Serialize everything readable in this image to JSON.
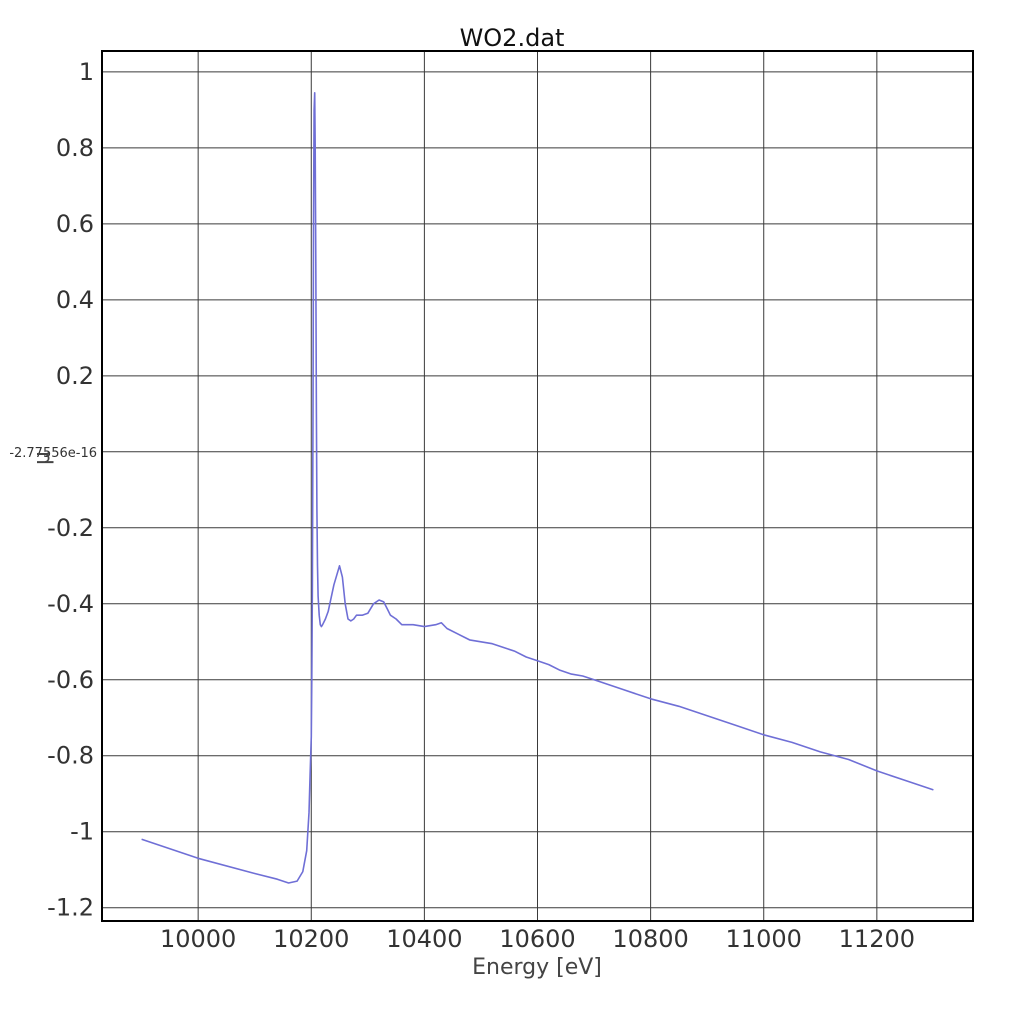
{
  "chart_data": {
    "type": "line",
    "title": "WO2.dat",
    "xlabel": "Energy [eV]",
    "ylabel": "μ",
    "xlim": [
      9830,
      11370
    ],
    "ylim": [
      -1.235,
      1.055
    ],
    "grid": true,
    "x_ticks": [
      10000,
      10200,
      10400,
      10600,
      10800,
      11000,
      11200
    ],
    "x_tick_labels": [
      "10000",
      "10200",
      "10400",
      "10600",
      "10800",
      "11000",
      "11200"
    ],
    "y_ticks": [
      1,
      0.8,
      0.6,
      0.4,
      0.2,
      0,
      -0.2,
      -0.4,
      -0.6,
      -0.8,
      -1,
      -1.2
    ],
    "y_tick_labels": [
      "1",
      "0.8",
      "0.6",
      "0.4",
      "0.2",
      "-2.77556e-16",
      "-0.2",
      "-0.4",
      "-0.6",
      "-0.8",
      "-1",
      "-1.2"
    ],
    "series": [
      {
        "color": "#6f6fd6",
        "x": [
          9900,
          10000,
          10100,
          10140,
          10160,
          10175,
          10185,
          10192,
          10196,
          10198,
          10200,
          10201,
          10202,
          10203,
          10204,
          10205,
          10206,
          10207,
          10208,
          10209,
          10210,
          10211,
          10212,
          10214,
          10216,
          10218,
          10220,
          10225,
          10230,
          10240,
          10250,
          10255,
          10260,
          10265,
          10270,
          10275,
          10280,
          10290,
          10300,
          10310,
          10320,
          10328,
          10335,
          10340,
          10350,
          10360,
          10380,
          10400,
          10420,
          10430,
          10440,
          10460,
          10480,
          10500,
          10520,
          10540,
          10560,
          10580,
          10600,
          10620,
          10640,
          10660,
          10680,
          10700,
          10750,
          10800,
          10850,
          10900,
          10950,
          11000,
          11050,
          11100,
          11150,
          11200,
          11250,
          11300
        ],
        "y": [
          -1.02,
          -1.07,
          -1.11,
          -1.125,
          -1.135,
          -1.13,
          -1.105,
          -1.05,
          -0.95,
          -0.85,
          -0.75,
          -0.6,
          -0.35,
          0.1,
          0.6,
          0.9,
          0.945,
          0.8,
          0.5,
          0.1,
          -0.15,
          -0.3,
          -0.38,
          -0.43,
          -0.455,
          -0.46,
          -0.455,
          -0.44,
          -0.42,
          -0.35,
          -0.3,
          -0.33,
          -0.4,
          -0.44,
          -0.445,
          -0.44,
          -0.43,
          -0.43,
          -0.425,
          -0.4,
          -0.39,
          -0.395,
          -0.415,
          -0.43,
          -0.44,
          -0.455,
          -0.455,
          -0.46,
          -0.455,
          -0.45,
          -0.465,
          -0.48,
          -0.495,
          -0.5,
          -0.505,
          -0.515,
          -0.525,
          -0.54,
          -0.55,
          -0.56,
          -0.575,
          -0.585,
          -0.59,
          -0.6,
          -0.625,
          -0.65,
          -0.67,
          -0.695,
          -0.72,
          -0.745,
          -0.765,
          -0.79,
          -0.81,
          -0.84,
          -0.865,
          -0.89
        ]
      }
    ]
  }
}
